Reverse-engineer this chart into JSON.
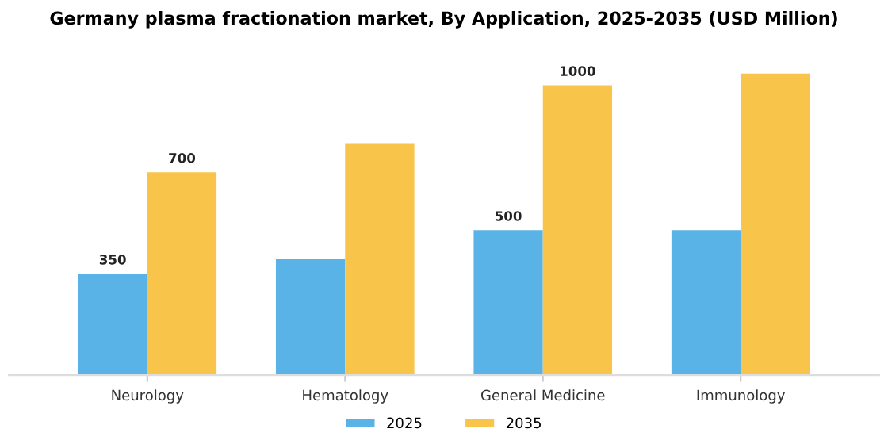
{
  "chart_data": {
    "type": "bar",
    "title": "Germany plasma fractionation market, By Application, 2025-2035 (USD Million)",
    "categories": [
      "Neurology",
      "Hematology",
      "General Medicine",
      "Immunology"
    ],
    "series": [
      {
        "name": "2025",
        "color": "#5ab3e6",
        "values": [
          350,
          400,
          500,
          500
        ],
        "value_labels": [
          "350",
          null,
          "500",
          null
        ]
      },
      {
        "name": "2035",
        "color": "#f8c44a",
        "values": [
          700,
          800,
          1000,
          1040
        ],
        "value_labels": [
          "700",
          null,
          "1000",
          null
        ]
      }
    ],
    "legend": "bottom",
    "grid": false
  }
}
